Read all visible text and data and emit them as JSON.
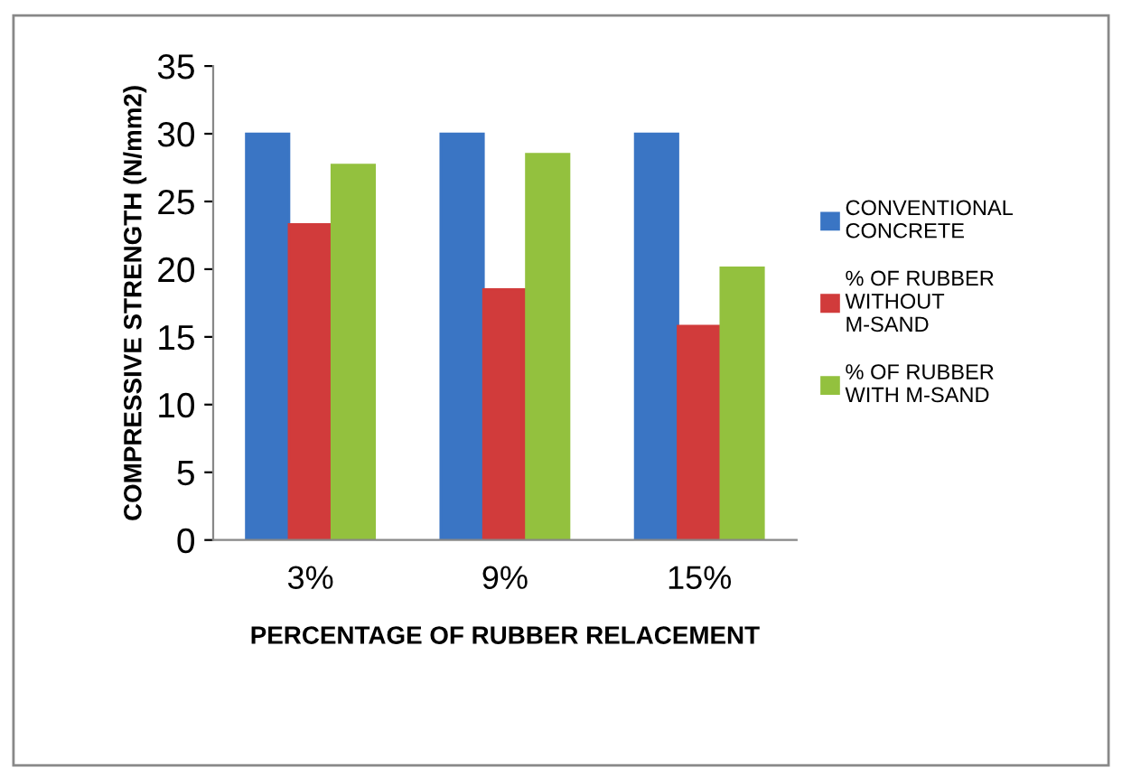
{
  "chart_data": {
    "type": "bar",
    "categories": [
      "3%",
      "9%",
      "15%"
    ],
    "series": [
      {
        "name": "CONVENTIONAL CONCRETE",
        "color": "#3a75c4",
        "values": [
          30,
          30,
          30
        ]
      },
      {
        "name": "% OF RUBBER WITHOUT M-SAND",
        "color": "#d13b3b",
        "values": [
          23.3,
          18.5,
          15.8
        ]
      },
      {
        "name": "% OF RUBBER WITH M-SAND",
        "color": "#93c13e",
        "values": [
          27.7,
          28.5,
          20.1
        ]
      }
    ],
    "xlabel": "PERCENTAGE OF RUBBER RELACEMENT",
    "ylabel": "COMPRESSIVE STRENGTH (N/mm2)",
    "ylim": [
      0,
      35
    ],
    "yticks": [
      0,
      5,
      10,
      15,
      20,
      25,
      30,
      35
    ],
    "legend": "right",
    "grid": false
  }
}
